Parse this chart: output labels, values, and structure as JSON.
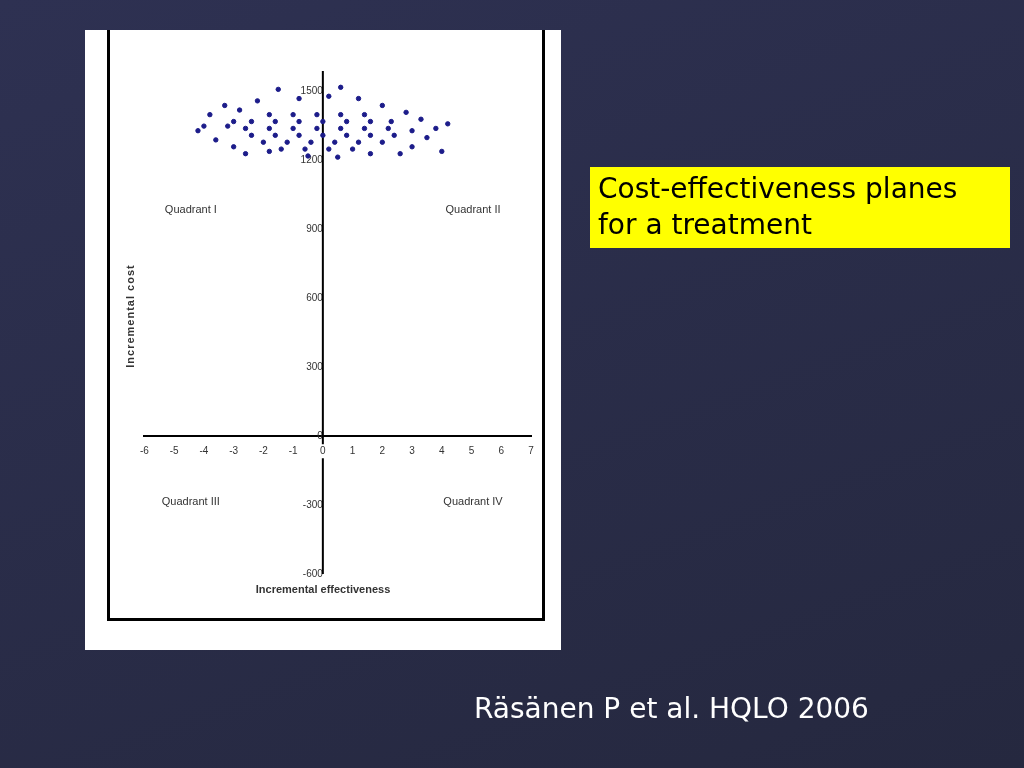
{
  "chart_data": {
    "type": "scatter",
    "title": "Cost-effectiveness planes for a treatment",
    "xlabel": "Incremental effectiveness",
    "ylabel": "Incremental cost",
    "annotations": [
      "Quadrant I",
      "Quadrant II",
      "Quadrant III",
      "Quadrant IV",
      "Räsänen P et al. HQLO 2006"
    ],
    "color": "#1c1c8a",
    "marker": "circle",
    "grid": false,
    "legend": false,
    "xlim": [
      -6,
      7
    ],
    "xticks": [
      -6,
      -5,
      -4,
      -3,
      -2,
      -1,
      0,
      1,
      2,
      3,
      4,
      5,
      6,
      7
    ],
    "ylim": [
      -600,
      1590
    ],
    "yticks": [
      -600,
      -300,
      0,
      300,
      600,
      900,
      1200,
      1500
    ],
    "x": [
      -1.8,
      -1.0,
      -0.2,
      0.6,
      1.4,
      -2.4,
      -1.6,
      -0.8,
      0,
      0.8,
      1.6,
      2.3,
      -2.6,
      -1.8,
      -1.0,
      -0.2,
      0.6,
      1.4,
      2.2,
      -2.4,
      -1.6,
      -0.8,
      0,
      0.8,
      1.6,
      2.4,
      -2.0,
      -1.2,
      -0.4,
      0.4,
      1.2,
      2.0,
      -1.4,
      -0.6,
      0.2,
      1.0,
      -4.2,
      -3.8,
      -3.6,
      -3.3,
      -3.0,
      -2.8,
      -2.2,
      -1.5,
      -0.8,
      0.6,
      0.2,
      1.2,
      2.0,
      2.8,
      3.3,
      3.8,
      4.2,
      4.0,
      3.5,
      3.0,
      2.6,
      1.6,
      0.5,
      -0.5,
      -1.8,
      -2.6,
      -3.2,
      -4.0,
      3.0,
      -3.0
    ],
    "values": [
      1400,
      1400,
      1400,
      1400,
      1400,
      1370,
      1370,
      1370,
      1370,
      1370,
      1370,
      1370,
      1340,
      1340,
      1340,
      1340,
      1340,
      1340,
      1340,
      1310,
      1310,
      1310,
      1310,
      1310,
      1310,
      1310,
      1280,
      1280,
      1280,
      1280,
      1280,
      1280,
      1250,
      1250,
      1250,
      1250,
      1330,
      1400,
      1290,
      1440,
      1260,
      1420,
      1460,
      1510,
      1470,
      1519,
      1480,
      1470,
      1440,
      1410,
      1380,
      1340,
      1360,
      1240,
      1300,
      1260,
      1230,
      1230,
      1215,
      1220,
      1240,
      1230,
      1350,
      1350,
      1330,
      1370
    ]
  }
}
